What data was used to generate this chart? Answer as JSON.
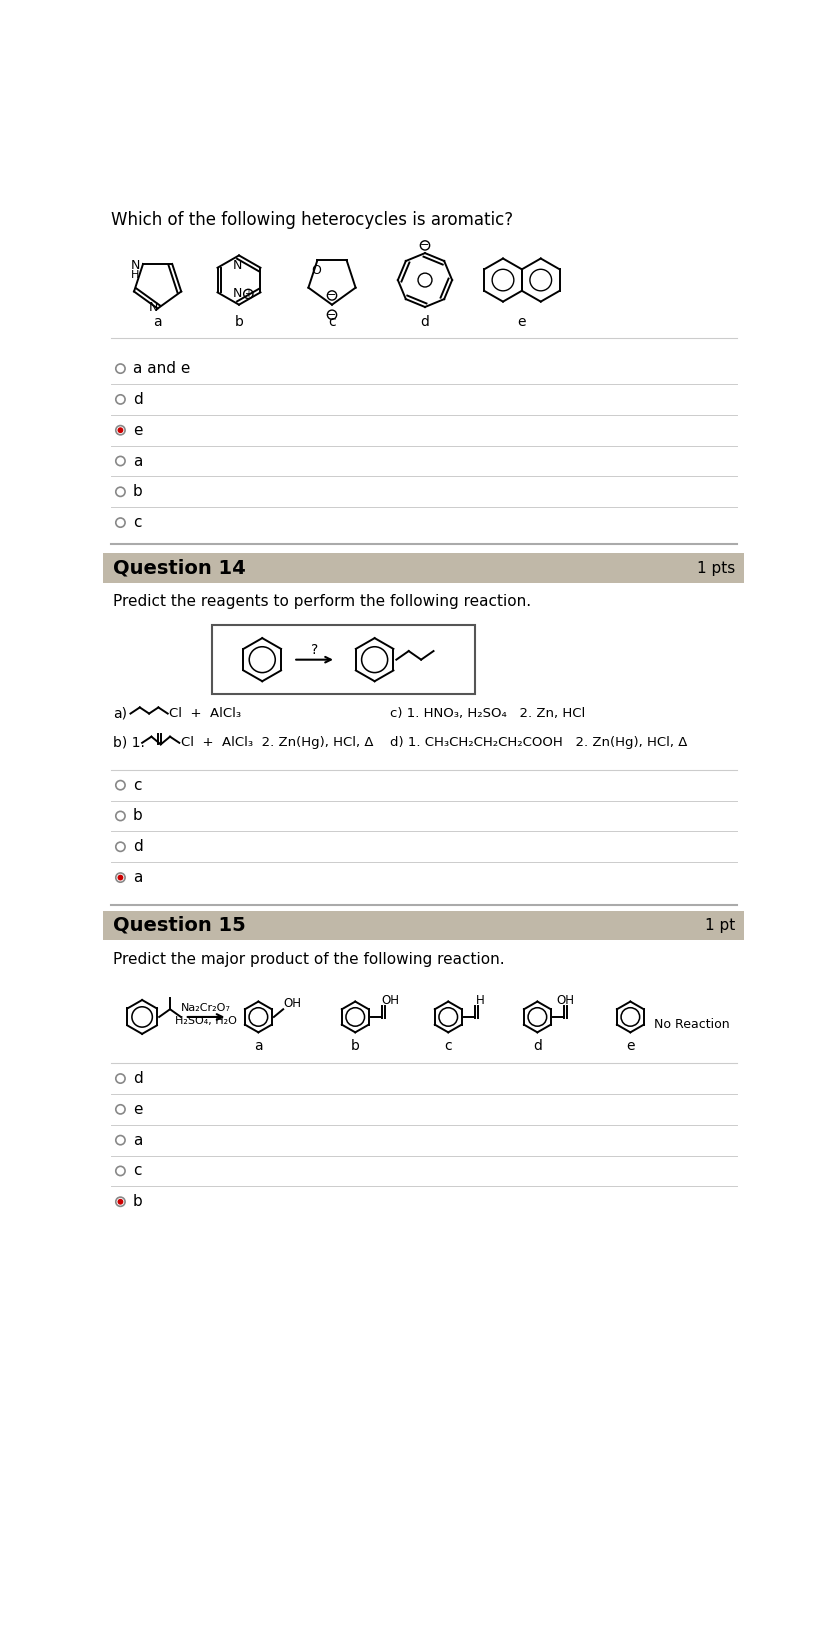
{
  "white": "#ffffff",
  "light_gray_bg": "#f0f0f0",
  "header_bg": "#c0b8a8",
  "gray_line": "#cccccc",
  "red_dot": "#cc0000",
  "q13_title": "Which of the following heterocycles is aromatic?",
  "q14_title": "Question 14",
  "q14_pts": "1 pts",
  "q15_title": "Question 15",
  "q15_pts": "1 pt",
  "q14_subtitle": "Predict the reagents to perform the following reaction.",
  "q15_subtitle": "Predict the major product of the following reaction.",
  "q13_options": [
    "a and e",
    "d",
    "e",
    "a",
    "b",
    "c"
  ],
  "q13_selected": 2,
  "q14_options": [
    "c",
    "b",
    "d",
    "a"
  ],
  "q14_selected": 3,
  "q15_options": [
    "d",
    "e",
    "a",
    "c",
    "b"
  ],
  "q15_selected": 4,
  "q14_answer_a": "a)       Cl  +  AlCl₃",
  "q14_answer_c": "c) 1. HNO₃, H₂SO₄   2. Zn, HCl",
  "q14_answer_b": "b) 1.         Cl  +  AlCl₃  2. Zn(Hg), HCl, Δ",
  "q14_answer_d": "d) 1. CH₃CH₂CH₂CH₂COOH   2. Zn(Hg), HCl, Δ"
}
